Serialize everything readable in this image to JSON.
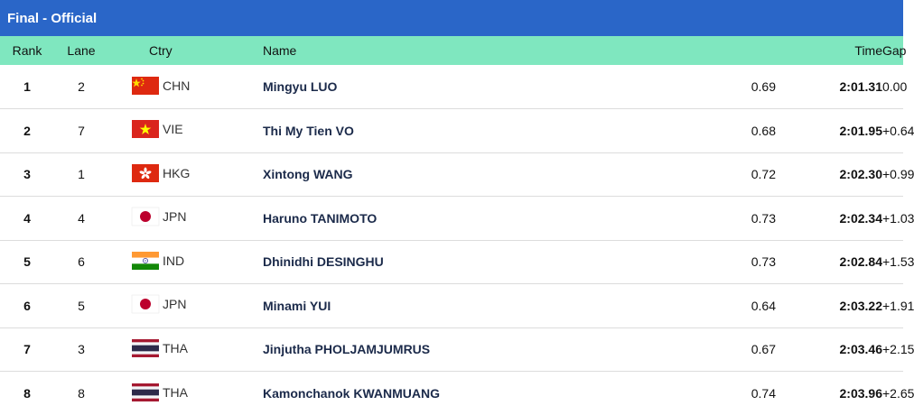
{
  "header": {
    "title": "Final - Official"
  },
  "columns": {
    "rank": "Rank",
    "lane": "Lane",
    "ctry": "Ctry",
    "name": "Name",
    "time": "Time",
    "gap": "Gap"
  },
  "rows": [
    {
      "rank": "1",
      "lane": "2",
      "ctry": "CHN",
      "flag": "china-flag-icon",
      "name": "Mingyu LUO",
      "reaction": "0.69",
      "time": "2:01.31",
      "gap": "0.00"
    },
    {
      "rank": "2",
      "lane": "7",
      "ctry": "VIE",
      "flag": "vietnam-flag-icon",
      "name": "Thi My Tien VO",
      "reaction": "0.68",
      "time": "2:01.95",
      "gap": "+0.64"
    },
    {
      "rank": "3",
      "lane": "1",
      "ctry": "HKG",
      "flag": "hong-kong-flag-icon",
      "name": "Xintong WANG",
      "reaction": "0.72",
      "time": "2:02.30",
      "gap": "+0.99"
    },
    {
      "rank": "4",
      "lane": "4",
      "ctry": "JPN",
      "flag": "japan-flag-icon",
      "name": "Haruno TANIMOTO",
      "reaction": "0.73",
      "time": "2:02.34",
      "gap": "+1.03"
    },
    {
      "rank": "5",
      "lane": "6",
      "ctry": "IND",
      "flag": "india-flag-icon",
      "name": "Dhinidhi DESINGHU",
      "reaction": "0.73",
      "time": "2:02.84",
      "gap": "+1.53"
    },
    {
      "rank": "6",
      "lane": "5",
      "ctry": "JPN",
      "flag": "japan-flag-icon",
      "name": "Minami YUI",
      "reaction": "0.64",
      "time": "2:03.22",
      "gap": "+1.91"
    },
    {
      "rank": "7",
      "lane": "3",
      "ctry": "THA",
      "flag": "thailand-flag-icon",
      "name": "Jinjutha PHOLJAMJUMRUS",
      "reaction": "0.67",
      "time": "2:03.46",
      "gap": "+2.15"
    },
    {
      "rank": "8",
      "lane": "8",
      "ctry": "THA",
      "flag": "thailand-flag-icon",
      "name": "Kamonchanok KWANMUANG",
      "reaction": "0.74",
      "time": "2:03.96",
      "gap": "+2.65"
    }
  ],
  "colors": {
    "title_bar": "#2a66c8",
    "header_row": "#7fe7bf"
  }
}
